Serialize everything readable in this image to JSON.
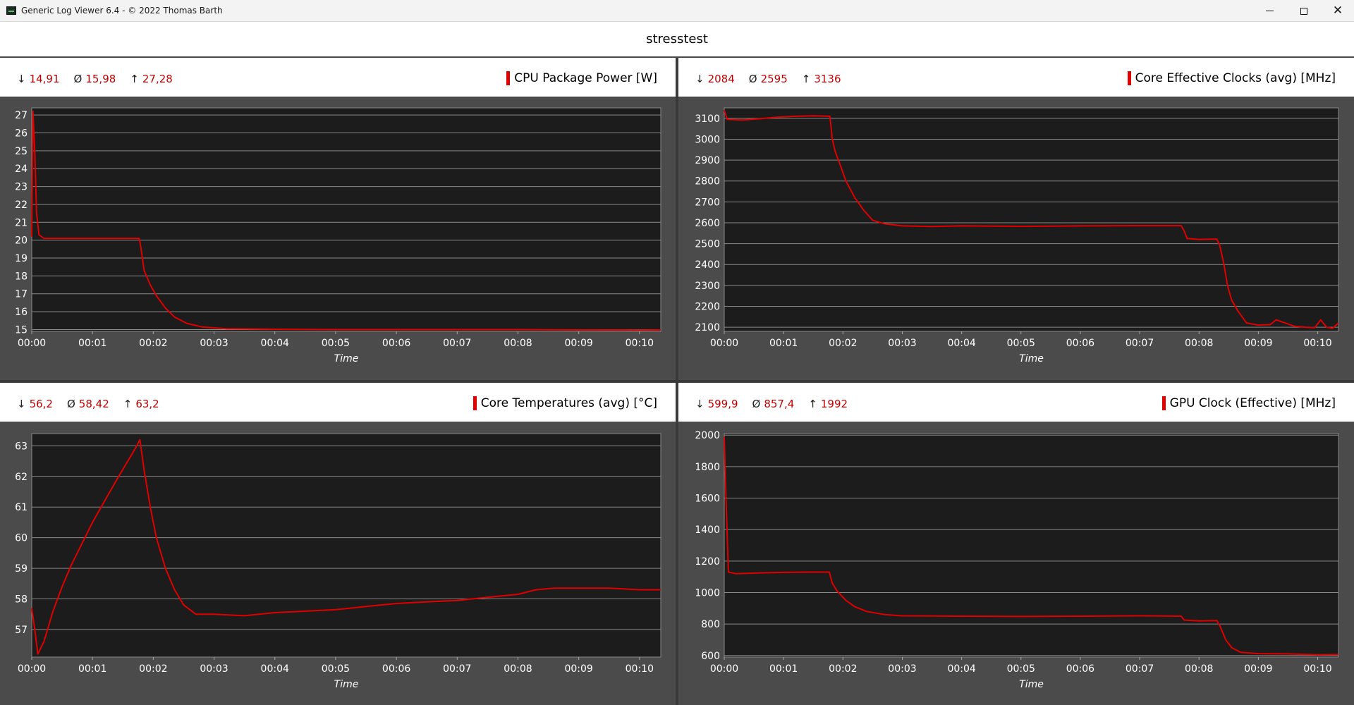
{
  "window": {
    "title": "Generic Log Viewer 6.4 - © 2022 Thomas Barth",
    "icon": "log-viewer-app-icon",
    "controls": {
      "minimize": "minimize-icon",
      "maximize": "maximize-icon",
      "close": "✕"
    }
  },
  "header": {
    "title": "stresstest"
  },
  "stat_glyphs": {
    "min": "↓",
    "avg": "Ø",
    "max": "↑"
  },
  "accent_color": "#e00000",
  "chart_data": [
    {
      "type": "line",
      "title": "CPU Package Power [W]",
      "stats": {
        "min": "14,91",
        "avg": "15,98",
        "max": "27,28"
      },
      "xlabel": "Time",
      "x_ticks": [
        "00:00",
        "00:01",
        "00:02",
        "00:03",
        "00:04",
        "00:05",
        "00:06",
        "00:07",
        "00:08",
        "00:09",
        "00:10"
      ],
      "xlim": [
        0,
        10.35
      ],
      "ylim": [
        14.9,
        27.4
      ],
      "y_ticks": [
        15,
        16,
        17,
        18,
        19,
        20,
        21,
        22,
        23,
        24,
        25,
        26,
        27
      ],
      "series": [
        {
          "color": "#e00000",
          "points": [
            [
              0,
              20.2
            ],
            [
              0.02,
              27.2
            ],
            [
              0.05,
              25
            ],
            [
              0.08,
              21.5
            ],
            [
              0.12,
              20.3
            ],
            [
              0.2,
              20.1
            ],
            [
              1.0,
              20.1
            ],
            [
              1.77,
              20.1
            ],
            [
              1.8,
              19.5
            ],
            [
              1.85,
              18.3
            ],
            [
              1.95,
              17.5
            ],
            [
              2.05,
              16.9
            ],
            [
              2.2,
              16.2
            ],
            [
              2.35,
              15.7
            ],
            [
              2.55,
              15.35
            ],
            [
              2.8,
              15.15
            ],
            [
              3.2,
              15.05
            ],
            [
              4,
              15.02
            ],
            [
              5,
              15.0
            ],
            [
              6,
              15.0
            ],
            [
              7,
              15.0
            ],
            [
              8,
              15.0
            ],
            [
              9,
              14.98
            ],
            [
              10,
              14.97
            ],
            [
              10.35,
              14.98
            ]
          ]
        }
      ]
    },
    {
      "type": "line",
      "title": "Core Effective Clocks (avg) [MHz]",
      "stats": {
        "min": "2084",
        "avg": "2595",
        "max": "3136"
      },
      "xlabel": "Time",
      "x_ticks": [
        "00:00",
        "00:01",
        "00:02",
        "00:03",
        "00:04",
        "00:05",
        "00:06",
        "00:07",
        "00:08",
        "00:09",
        "00:10"
      ],
      "xlim": [
        0,
        10.35
      ],
      "ylim": [
        2080,
        3150
      ],
      "y_ticks": [
        2100,
        2200,
        2300,
        2400,
        2500,
        2600,
        2700,
        2800,
        2900,
        3000,
        3100
      ],
      "series": [
        {
          "color": "#e00000",
          "points": [
            [
              0,
              3140
            ],
            [
              0.05,
              3095
            ],
            [
              0.3,
              3092
            ],
            [
              0.6,
              3098
            ],
            [
              0.9,
              3105
            ],
            [
              1.2,
              3110
            ],
            [
              1.5,
              3112
            ],
            [
              1.78,
              3110
            ],
            [
              1.82,
              3000
            ],
            [
              1.87,
              2940
            ],
            [
              1.95,
              2880
            ],
            [
              2.05,
              2800
            ],
            [
              2.2,
              2720
            ],
            [
              2.35,
              2660
            ],
            [
              2.5,
              2612
            ],
            [
              2.7,
              2595
            ],
            [
              3.0,
              2585
            ],
            [
              3.5,
              2582
            ],
            [
              4,
              2585
            ],
            [
              5,
              2583
            ],
            [
              6,
              2585
            ],
            [
              7,
              2586
            ],
            [
              7.7,
              2586
            ],
            [
              7.75,
              2560
            ],
            [
              7.8,
              2525
            ],
            [
              8.0,
              2520
            ],
            [
              8.3,
              2522
            ],
            [
              8.35,
              2490
            ],
            [
              8.42,
              2400
            ],
            [
              8.48,
              2300
            ],
            [
              8.55,
              2230
            ],
            [
              8.65,
              2180
            ],
            [
              8.8,
              2120
            ],
            [
              9.0,
              2110
            ],
            [
              9.2,
              2112
            ],
            [
              9.3,
              2135
            ],
            [
              9.45,
              2120
            ],
            [
              9.6,
              2105
            ],
            [
              9.8,
              2100
            ],
            [
              9.95,
              2098
            ],
            [
              10.05,
              2135
            ],
            [
              10.15,
              2100
            ],
            [
              10.25,
              2095
            ],
            [
              10.35,
              2120
            ]
          ]
        }
      ]
    },
    {
      "type": "line",
      "title": "Core Temperatures (avg) [°C]",
      "stats": {
        "min": "56,2",
        "avg": "58,42",
        "max": "63,2"
      },
      "xlabel": "Time",
      "x_ticks": [
        "00:00",
        "00:01",
        "00:02",
        "00:03",
        "00:04",
        "00:05",
        "00:06",
        "00:07",
        "00:08",
        "00:09",
        "00:10"
      ],
      "xlim": [
        0,
        10.35
      ],
      "ylim": [
        56.1,
        63.4
      ],
      "y_ticks": [
        57,
        58,
        59,
        60,
        61,
        62,
        63
      ],
      "series": [
        {
          "color": "#e00000",
          "points": [
            [
              0,
              57.7
            ],
            [
              0.05,
              57.0
            ],
            [
              0.1,
              56.2
            ],
            [
              0.2,
              56.6
            ],
            [
              0.35,
              57.6
            ],
            [
              0.5,
              58.4
            ],
            [
              0.65,
              59.1
            ],
            [
              0.8,
              59.7
            ],
            [
              1.0,
              60.5
            ],
            [
              1.2,
              61.2
            ],
            [
              1.4,
              61.9
            ],
            [
              1.55,
              62.4
            ],
            [
              1.7,
              62.9
            ],
            [
              1.78,
              63.2
            ],
            [
              1.85,
              62.2
            ],
            [
              1.95,
              61.0
            ],
            [
              2.05,
              60.0
            ],
            [
              2.2,
              59.0
            ],
            [
              2.35,
              58.3
            ],
            [
              2.5,
              57.8
            ],
            [
              2.7,
              57.5
            ],
            [
              3.0,
              57.5
            ],
            [
              3.5,
              57.45
            ],
            [
              4.0,
              57.55
            ],
            [
              4.5,
              57.6
            ],
            [
              5.0,
              57.65
            ],
            [
              5.5,
              57.75
            ],
            [
              6.0,
              57.85
            ],
            [
              6.5,
              57.9
            ],
            [
              7.0,
              57.95
            ],
            [
              7.5,
              58.05
            ],
            [
              8.0,
              58.15
            ],
            [
              8.3,
              58.3
            ],
            [
              8.6,
              58.35
            ],
            [
              9.0,
              58.35
            ],
            [
              9.5,
              58.35
            ],
            [
              10.0,
              58.3
            ],
            [
              10.35,
              58.3
            ]
          ]
        }
      ]
    },
    {
      "type": "line",
      "title": "GPU Clock (Effective) [MHz]",
      "stats": {
        "min": "599,9",
        "avg": "857,4",
        "max": "1992"
      },
      "xlabel": "Time",
      "x_ticks": [
        "00:00",
        "00:01",
        "00:02",
        "00:03",
        "00:04",
        "00:05",
        "00:06",
        "00:07",
        "00:08",
        "00:09",
        "00:10"
      ],
      "xlim": [
        0,
        10.35
      ],
      "ylim": [
        590,
        2010
      ],
      "y_ticks": [
        600,
        800,
        1000,
        1200,
        1400,
        1600,
        1800,
        2000
      ],
      "series": [
        {
          "color": "#e00000",
          "points": [
            [
              0,
              1990
            ],
            [
              0.03,
              1600
            ],
            [
              0.07,
              1130
            ],
            [
              0.2,
              1120
            ],
            [
              0.6,
              1125
            ],
            [
              1.0,
              1128
            ],
            [
              1.4,
              1130
            ],
            [
              1.77,
              1130
            ],
            [
              1.82,
              1060
            ],
            [
              1.9,
              1010
            ],
            [
              2.05,
              950
            ],
            [
              2.2,
              910
            ],
            [
              2.4,
              880
            ],
            [
              2.7,
              860
            ],
            [
              3.0,
              852
            ],
            [
              4,
              850
            ],
            [
              5,
              848
            ],
            [
              6,
              850
            ],
            [
              7,
              852
            ],
            [
              7.7,
              850
            ],
            [
              7.75,
              825
            ],
            [
              8.0,
              820
            ],
            [
              8.3,
              822
            ],
            [
              8.35,
              790
            ],
            [
              8.45,
              700
            ],
            [
              8.55,
              650
            ],
            [
              8.7,
              620
            ],
            [
              9.0,
              612
            ],
            [
              9.5,
              610
            ],
            [
              10.0,
              605
            ],
            [
              10.35,
              606
            ]
          ]
        }
      ]
    }
  ]
}
